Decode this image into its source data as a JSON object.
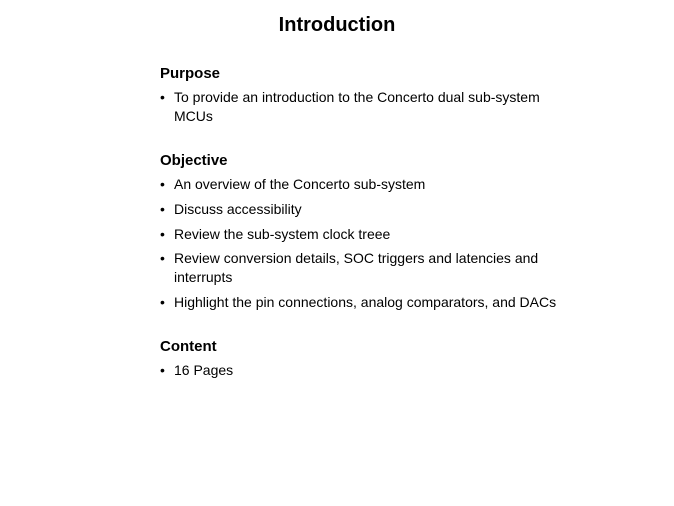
{
  "title": "Introduction",
  "sections": [
    {
      "heading": "Purpose",
      "items": [
        "To provide an introduction to the Concerto dual sub-system MCUs"
      ]
    },
    {
      "heading": "Objective",
      "items": [
        "An overview of the Concerto sub-system",
        "Discuss accessibility",
        "Review the sub-system clock treee",
        "Review conversion details, SOC triggers and latencies and interrupts",
        "Highlight the pin connections, analog comparators, and DACs"
      ]
    },
    {
      "heading": "Content",
      "items": [
        "16 Pages"
      ]
    }
  ]
}
